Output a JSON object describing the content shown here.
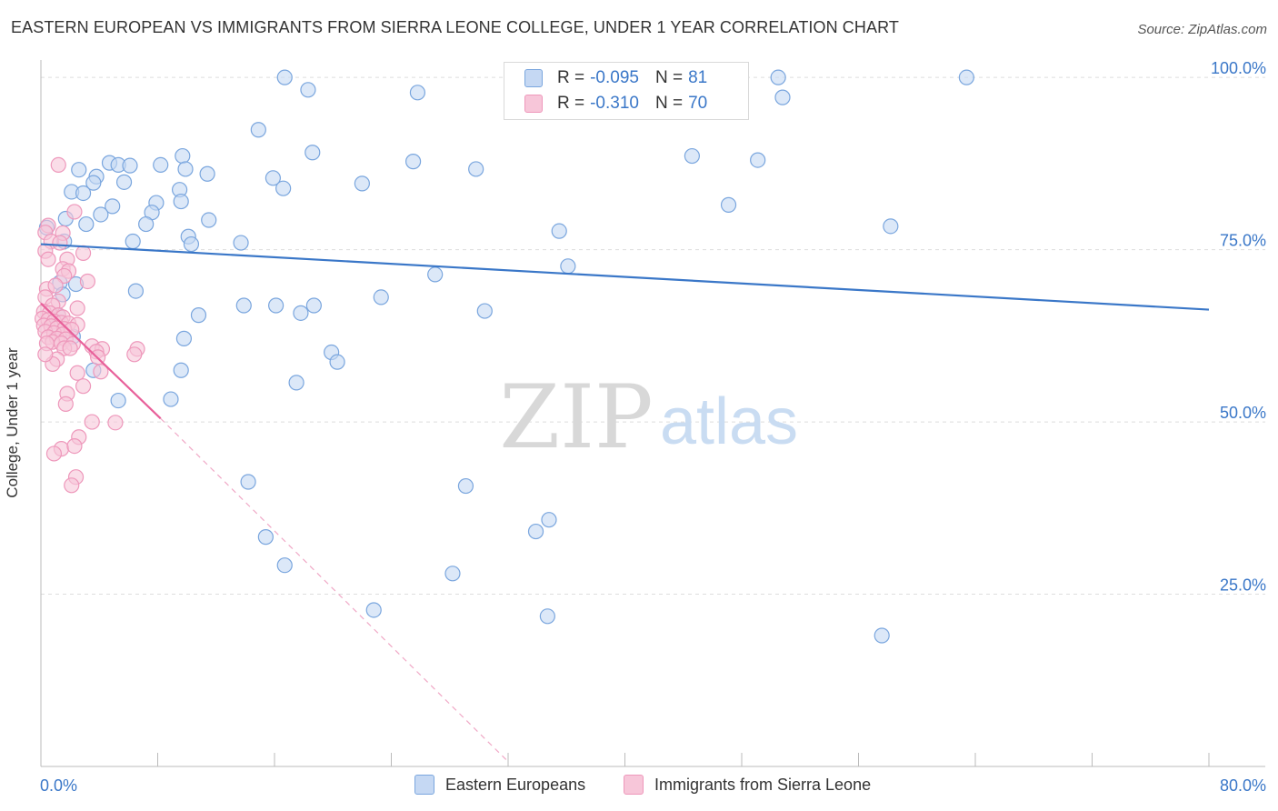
{
  "title": "EASTERN EUROPEAN VS IMMIGRANTS FROM SIERRA LEONE COLLEGE, UNDER 1 YEAR CORRELATION CHART",
  "source": "Source: ZipAtlas.com",
  "watermark": {
    "zip": "ZIP",
    "atlas": "atlas"
  },
  "colors": {
    "blue": "#3a77c8",
    "blue_fill": "#c5d8f3",
    "blue_stroke": "#7aa6de",
    "pink": "#e8609a",
    "pink_fill": "#f7c6d9",
    "pink_stroke": "#ee98bb",
    "grid": "#dddddd",
    "axis_text": "#3a77c8"
  },
  "legend": {
    "rows": [
      {
        "r_label": "R =",
        "r_value": "-0.095",
        "n_label": "N =",
        "n_value": "81"
      },
      {
        "r_label": "R =",
        "r_value": "-0.310",
        "n_label": "N =",
        "n_value": "70"
      }
    ]
  },
  "bottom_legend": [
    "Eastern Europeans",
    "Immigrants from Sierra Leone"
  ],
  "chart_data": {
    "type": "scatter",
    "title": "EASTERN EUROPEAN VS IMMIGRANTS FROM SIERRA LEONE COLLEGE, UNDER 1 YEAR CORRELATION CHART",
    "xlabel": "",
    "ylabel": "College, Under 1 year",
    "xlim": [
      0,
      80
    ],
    "ylim": [
      0,
      102
    ],
    "x_tick_labels": [
      "0.0%",
      "80.0%"
    ],
    "y_tick_values": [
      25,
      50,
      75,
      100
    ],
    "y_tick_labels": [
      "25.0%",
      "50.0%",
      "75.0%",
      "100.0%"
    ],
    "grid": true,
    "series": [
      {
        "name": "Eastern Europeans",
        "R": -0.095,
        "N": 81,
        "trendline": {
          "x": [
            0,
            80
          ],
          "y": [
            75.8,
            66.3
          ]
        },
        "points": [
          [
            16.7,
            100
          ],
          [
            50.5,
            100
          ],
          [
            63.4,
            100
          ],
          [
            18.3,
            98.2
          ],
          [
            25.8,
            97.8
          ],
          [
            50.8,
            97.1
          ],
          [
            14.9,
            92.4
          ],
          [
            18.6,
            89.1
          ],
          [
            9.7,
            88.6
          ],
          [
            44.6,
            88.6
          ],
          [
            25.5,
            87.8
          ],
          [
            49.1,
            88.0
          ],
          [
            2.6,
            86.6
          ],
          [
            4.7,
            87.6
          ],
          [
            5.3,
            87.3
          ],
          [
            8.2,
            87.3
          ],
          [
            6.1,
            87.2
          ],
          [
            9.9,
            86.7
          ],
          [
            11.4,
            86.0
          ],
          [
            3.8,
            85.6
          ],
          [
            29.8,
            86.7
          ],
          [
            15.9,
            85.4
          ],
          [
            2.1,
            83.4
          ],
          [
            22.0,
            84.6
          ],
          [
            3.6,
            84.7
          ],
          [
            5.7,
            84.8
          ],
          [
            9.5,
            83.7
          ],
          [
            16.6,
            83.9
          ],
          [
            2.9,
            83.2
          ],
          [
            4.9,
            81.3
          ],
          [
            7.9,
            81.8
          ],
          [
            9.6,
            82.0
          ],
          [
            7.6,
            80.4
          ],
          [
            4.1,
            80.1
          ],
          [
            1.7,
            79.5
          ],
          [
            11.5,
            79.3
          ],
          [
            47.1,
            81.5
          ],
          [
            3.1,
            78.7
          ],
          [
            0.4,
            78.2
          ],
          [
            7.2,
            78.7
          ],
          [
            58.2,
            78.4
          ],
          [
            35.5,
            77.7
          ],
          [
            10.1,
            76.9
          ],
          [
            1.6,
            76.2
          ],
          [
            6.3,
            76.2
          ],
          [
            13.7,
            76.0
          ],
          [
            10.3,
            75.8
          ],
          [
            27.0,
            71.4
          ],
          [
            36.1,
            72.6
          ],
          [
            6.5,
            69.0
          ],
          [
            2.4,
            70.0
          ],
          [
            1.3,
            70.2
          ],
          [
            23.3,
            68.1
          ],
          [
            13.9,
            66.9
          ],
          [
            16.1,
            66.9
          ],
          [
            18.7,
            66.9
          ],
          [
            30.4,
            66.1
          ],
          [
            10.8,
            65.5
          ],
          [
            17.8,
            65.8
          ],
          [
            9.8,
            62.1
          ],
          [
            19.9,
            60.1
          ],
          [
            20.3,
            58.7
          ],
          [
            3.6,
            57.5
          ],
          [
            9.6,
            57.5
          ],
          [
            17.5,
            55.7
          ],
          [
            5.3,
            53.1
          ],
          [
            8.9,
            53.3
          ],
          [
            14.2,
            41.3
          ],
          [
            29.1,
            40.7
          ],
          [
            34.8,
            35.8
          ],
          [
            33.9,
            34.1
          ],
          [
            15.4,
            33.3
          ],
          [
            16.7,
            29.2
          ],
          [
            28.2,
            28.0
          ],
          [
            22.8,
            22.7
          ],
          [
            34.7,
            21.8
          ],
          [
            57.6,
            19.0
          ],
          [
            1.0,
            63.8
          ],
          [
            1.5,
            68.5
          ],
          [
            1.2,
            65.4
          ],
          [
            2.2,
            62.4
          ]
        ]
      },
      {
        "name": "Immigrants from Sierra Leone",
        "R": -0.31,
        "N": 70,
        "trendline": {
          "x": [
            0,
            8.2
          ],
          "y": [
            67.2,
            50.5
          ],
          "dashed_extension": {
            "x": [
              8.2,
              32.0
            ],
            "y": [
              50.5,
              0.7
            ]
          }
        },
        "points": [
          [
            1.2,
            87.3
          ],
          [
            2.3,
            80.5
          ],
          [
            0.5,
            78.5
          ],
          [
            0.3,
            77.5
          ],
          [
            1.5,
            77.4
          ],
          [
            0.7,
            76.2
          ],
          [
            1.3,
            76.0
          ],
          [
            0.3,
            74.8
          ],
          [
            2.9,
            74.5
          ],
          [
            0.5,
            73.6
          ],
          [
            1.8,
            73.6
          ],
          [
            1.5,
            72.2
          ],
          [
            1.9,
            71.9
          ],
          [
            1.6,
            71.2
          ],
          [
            3.2,
            70.4
          ],
          [
            0.4,
            69.3
          ],
          [
            1.0,
            69.8
          ],
          [
            0.3,
            68.1
          ],
          [
            1.2,
            67.5
          ],
          [
            0.8,
            66.9
          ],
          [
            2.5,
            66.5
          ],
          [
            0.2,
            66.0
          ],
          [
            0.6,
            65.8
          ],
          [
            1.2,
            65.5
          ],
          [
            1.5,
            65.2
          ],
          [
            0.1,
            65.0
          ],
          [
            0.5,
            64.8
          ],
          [
            0.9,
            64.6
          ],
          [
            1.4,
            64.4
          ],
          [
            1.9,
            64.3
          ],
          [
            2.5,
            64.1
          ],
          [
            0.2,
            64.0
          ],
          [
            0.7,
            63.9
          ],
          [
            1.1,
            63.6
          ],
          [
            1.6,
            63.5
          ],
          [
            2.1,
            63.4
          ],
          [
            0.3,
            63.1
          ],
          [
            0.9,
            62.9
          ],
          [
            1.5,
            62.7
          ],
          [
            0.5,
            62.3
          ],
          [
            1.1,
            62.1
          ],
          [
            1.7,
            62.0
          ],
          [
            0.8,
            61.6
          ],
          [
            1.4,
            61.4
          ],
          [
            2.2,
            61.3
          ],
          [
            3.5,
            61.0
          ],
          [
            1.6,
            60.7
          ],
          [
            2.0,
            60.7
          ],
          [
            4.2,
            60.6
          ],
          [
            6.6,
            60.6
          ],
          [
            3.8,
            60.2
          ],
          [
            6.4,
            59.8
          ],
          [
            3.9,
            59.4
          ],
          [
            1.1,
            59.1
          ],
          [
            0.8,
            58.4
          ],
          [
            4.1,
            57.3
          ],
          [
            2.5,
            57.1
          ],
          [
            1.8,
            54.1
          ],
          [
            1.7,
            52.6
          ],
          [
            3.5,
            50.0
          ],
          [
            5.1,
            49.9
          ],
          [
            2.6,
            47.8
          ],
          [
            1.4,
            46.1
          ],
          [
            0.9,
            45.4
          ],
          [
            2.3,
            46.5
          ],
          [
            2.4,
            42.0
          ],
          [
            2.1,
            40.8
          ],
          [
            0.4,
            61.4
          ],
          [
            0.3,
            59.8
          ],
          [
            2.9,
            55.2
          ]
        ]
      }
    ]
  }
}
